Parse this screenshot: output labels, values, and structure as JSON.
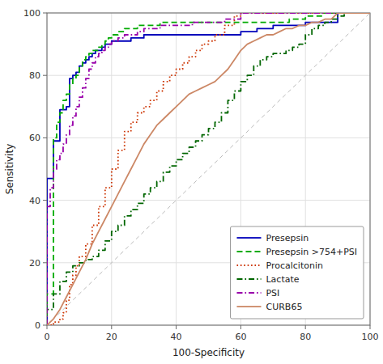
{
  "chart_data": {
    "type": "line",
    "xlabel": "100-Specificity",
    "ylabel": "Sensitivity",
    "xlim": [
      0,
      100
    ],
    "ylim": [
      0,
      100
    ],
    "xticks": [
      0,
      20,
      40,
      60,
      80,
      100
    ],
    "yticks": [
      0,
      20,
      40,
      60,
      80,
      100
    ],
    "grid": true,
    "legend": "lower right",
    "series": [
      {
        "name": "Presepsin",
        "color": "#0000bb",
        "line_style": "solid",
        "x": [
          0,
          0,
          2,
          2,
          4,
          4,
          6,
          6,
          7,
          7,
          8,
          8,
          9,
          9,
          10,
          10,
          11,
          11,
          12,
          12,
          13,
          13,
          14,
          14,
          15,
          15,
          16,
          16,
          17,
          17,
          18,
          18,
          19,
          19,
          20,
          20,
          22,
          22,
          24,
          24,
          26,
          26,
          28,
          28,
          30,
          30,
          35,
          35,
          40,
          40,
          45,
          45,
          50,
          50,
          55,
          55,
          60,
          60,
          65,
          65,
          70,
          70,
          75,
          75,
          80,
          80,
          85,
          85,
          90,
          90,
          95,
          95,
          100
        ],
        "values": [
          0,
          47,
          47,
          59,
          59,
          69,
          69,
          70,
          70,
          79,
          79,
          80,
          80,
          81,
          81,
          83,
          83,
          84,
          84,
          85,
          85,
          86,
          86,
          87,
          87,
          88,
          88,
          88,
          88,
          89,
          89,
          90,
          90,
          90,
          90,
          91,
          91,
          91,
          91,
          91,
          91,
          92,
          92,
          92,
          92,
          93,
          93,
          93,
          93,
          93,
          93,
          93,
          93,
          93,
          93,
          93,
          93,
          94,
          94,
          95,
          95,
          96,
          96,
          96,
          96,
          97,
          97,
          97,
          97,
          100,
          100,
          100,
          100
        ]
      },
      {
        "name": "Presepsin >754+PSI",
        "color": "#00aa00",
        "line_style": "dashed",
        "x": [
          0,
          0,
          2,
          2,
          3,
          3,
          4,
          4,
          5,
          5,
          6,
          6,
          7,
          7,
          8,
          8,
          9,
          9,
          10,
          10,
          11,
          11,
          12,
          12,
          13,
          13,
          14,
          14,
          15,
          15,
          16,
          16,
          17,
          17,
          18,
          18,
          19,
          19,
          20,
          20,
          22,
          22,
          24,
          24,
          26,
          26,
          28,
          28,
          30,
          30,
          35,
          35,
          40,
          40,
          45,
          45,
          50,
          50,
          55,
          55,
          60,
          60,
          65,
          65,
          70,
          70,
          75,
          75,
          80,
          80,
          85,
          85,
          90,
          90,
          95,
          95,
          100
        ],
        "values": [
          0,
          10,
          10,
          60,
          60,
          65,
          65,
          68,
          68,
          72,
          72,
          74,
          74,
          77,
          77,
          79,
          79,
          80,
          80,
          83,
          83,
          85,
          85,
          86,
          86,
          87,
          87,
          88,
          88,
          88,
          88,
          89,
          89,
          90,
          90,
          91,
          91,
          92,
          92,
          93,
          93,
          94,
          94,
          95,
          95,
          95,
          95,
          96,
          96,
          96,
          96,
          97,
          97,
          97,
          97,
          97,
          97,
          97,
          97,
          97,
          97,
          97,
          97,
          97,
          97,
          97,
          97,
          98,
          98,
          99,
          99,
          100,
          100,
          100,
          100,
          100,
          100
        ]
      },
      {
        "name": "Procalcitonin",
        "color": "#cc3300",
        "line_style": "dotted",
        "x": [
          0,
          0,
          2,
          2,
          4,
          4,
          5,
          5,
          6,
          6,
          7,
          7,
          8,
          8,
          9,
          9,
          10,
          10,
          12,
          12,
          14,
          14,
          16,
          16,
          18,
          18,
          20,
          20,
          22,
          22,
          24,
          24,
          26,
          26,
          28,
          28,
          30,
          30,
          32,
          32,
          34,
          34,
          36,
          36,
          38,
          38,
          40,
          40,
          42,
          42,
          44,
          44,
          46,
          46,
          48,
          48,
          50,
          50,
          52,
          52,
          55,
          55,
          58,
          58,
          60,
          60,
          62,
          62,
          64,
          64,
          66,
          66,
          100
        ],
        "values": [
          0,
          0,
          0,
          1,
          1,
          2,
          2,
          4,
          4,
          8,
          8,
          13,
          13,
          16,
          16,
          19,
          19,
          22,
          22,
          26,
          26,
          32,
          32,
          38,
          38,
          44,
          44,
          50,
          50,
          56,
          56,
          62,
          62,
          65,
          65,
          68,
          68,
          70,
          70,
          72,
          72,
          75,
          75,
          78,
          78,
          80,
          80,
          82,
          82,
          84,
          84,
          86,
          86,
          88,
          88,
          90,
          90,
          91,
          91,
          93,
          93,
          96,
          96,
          99,
          99,
          100,
          100,
          100,
          100,
          100,
          100,
          100,
          100
        ]
      },
      {
        "name": "Lactate",
        "color": "#006600",
        "line_style": "dashdot",
        "x": [
          0,
          0,
          2,
          2,
          4,
          4,
          6,
          6,
          8,
          8,
          10,
          10,
          12,
          12,
          14,
          14,
          16,
          16,
          18,
          18,
          20,
          20,
          22,
          22,
          24,
          24,
          26,
          26,
          28,
          28,
          30,
          30,
          32,
          32,
          34,
          34,
          36,
          36,
          38,
          38,
          40,
          40,
          42,
          42,
          44,
          44,
          46,
          46,
          48,
          48,
          50,
          50,
          52,
          52,
          54,
          54,
          56,
          56,
          58,
          58,
          60,
          60,
          62,
          62,
          64,
          64,
          66,
          66,
          68,
          68,
          70,
          70,
          72,
          72,
          74,
          74,
          76,
          76,
          78,
          78,
          80,
          80,
          82,
          82,
          84,
          84,
          86,
          86,
          88,
          88,
          90,
          90,
          92,
          92,
          94,
          94,
          96,
          96,
          98,
          98,
          100
        ],
        "values": [
          0,
          5,
          5,
          10,
          10,
          14,
          14,
          17,
          17,
          19,
          19,
          20,
          20,
          21,
          21,
          22,
          22,
          24,
          24,
          27,
          27,
          30,
          30,
          32,
          32,
          35,
          35,
          37,
          37,
          39,
          39,
          42,
          42,
          44,
          44,
          46,
          46,
          49,
          49,
          51,
          51,
          53,
          53,
          55,
          55,
          57,
          57,
          59,
          59,
          61,
          61,
          63,
          63,
          65,
          65,
          68,
          68,
          72,
          72,
          75,
          75,
          78,
          78,
          80,
          80,
          83,
          83,
          85,
          85,
          86,
          86,
          87,
          87,
          87,
          87,
          88,
          88,
          89,
          89,
          90,
          90,
          93,
          93,
          95,
          95,
          96,
          96,
          97,
          97,
          98,
          98,
          99,
          99,
          100,
          100,
          100,
          100,
          100,
          100,
          100,
          100
        ]
      },
      {
        "name": "PSI",
        "color": "#9900aa",
        "line_style": "dashdot",
        "x": [
          0,
          0,
          1,
          1,
          2,
          2,
          3,
          3,
          4,
          4,
          5,
          5,
          6,
          6,
          7,
          7,
          8,
          8,
          9,
          9,
          10,
          10,
          11,
          11,
          12,
          12,
          13,
          13,
          14,
          14,
          15,
          15,
          16,
          16,
          17,
          17,
          18,
          18,
          19,
          19,
          20,
          20,
          22,
          22,
          24,
          24,
          26,
          26,
          28,
          28,
          30,
          30,
          35,
          35,
          40,
          40,
          45,
          45,
          50,
          50,
          55,
          55,
          60,
          60,
          70,
          70,
          80,
          80,
          90,
          90,
          100
        ],
        "values": [
          0,
          38,
          38,
          44,
          44,
          50,
          50,
          53,
          53,
          55,
          55,
          58,
          58,
          61,
          61,
          64,
          64,
          67,
          67,
          70,
          70,
          73,
          73,
          76,
          76,
          79,
          79,
          82,
          82,
          84,
          84,
          86,
          86,
          87,
          87,
          88,
          88,
          89,
          89,
          90,
          90,
          91,
          91,
          92,
          92,
          93,
          93,
          93,
          93,
          94,
          94,
          95,
          95,
          96,
          96,
          96,
          96,
          97,
          97,
          97,
          97,
          98,
          98,
          100,
          100,
          100,
          100,
          100,
          100,
          100,
          100
        ]
      },
      {
        "name": "CURB65",
        "color": "#cc8866",
        "line_style": "solid",
        "x": [
          0,
          2,
          4,
          6,
          8,
          10,
          12,
          14,
          16,
          18,
          20,
          22,
          24,
          26,
          28,
          30,
          32,
          34,
          36,
          38,
          40,
          42,
          44,
          46,
          48,
          50,
          52,
          54,
          56,
          58,
          60,
          62,
          64,
          66,
          68,
          70,
          72,
          74,
          76,
          78,
          80,
          82,
          84,
          86,
          88,
          90,
          92,
          94,
          96,
          98,
          100
        ],
        "values": [
          0,
          2,
          5,
          9,
          13,
          17,
          21,
          26,
          30,
          34,
          38,
          42,
          46,
          50,
          54,
          58,
          61,
          64,
          66,
          68,
          70,
          72,
          74,
          75,
          76,
          77,
          78,
          80,
          82,
          85,
          88,
          90,
          91,
          92,
          93,
          93,
          94,
          95,
          95,
          96,
          96,
          97,
          97,
          98,
          98,
          100,
          100,
          100,
          100,
          100,
          100
        ]
      }
    ]
  }
}
